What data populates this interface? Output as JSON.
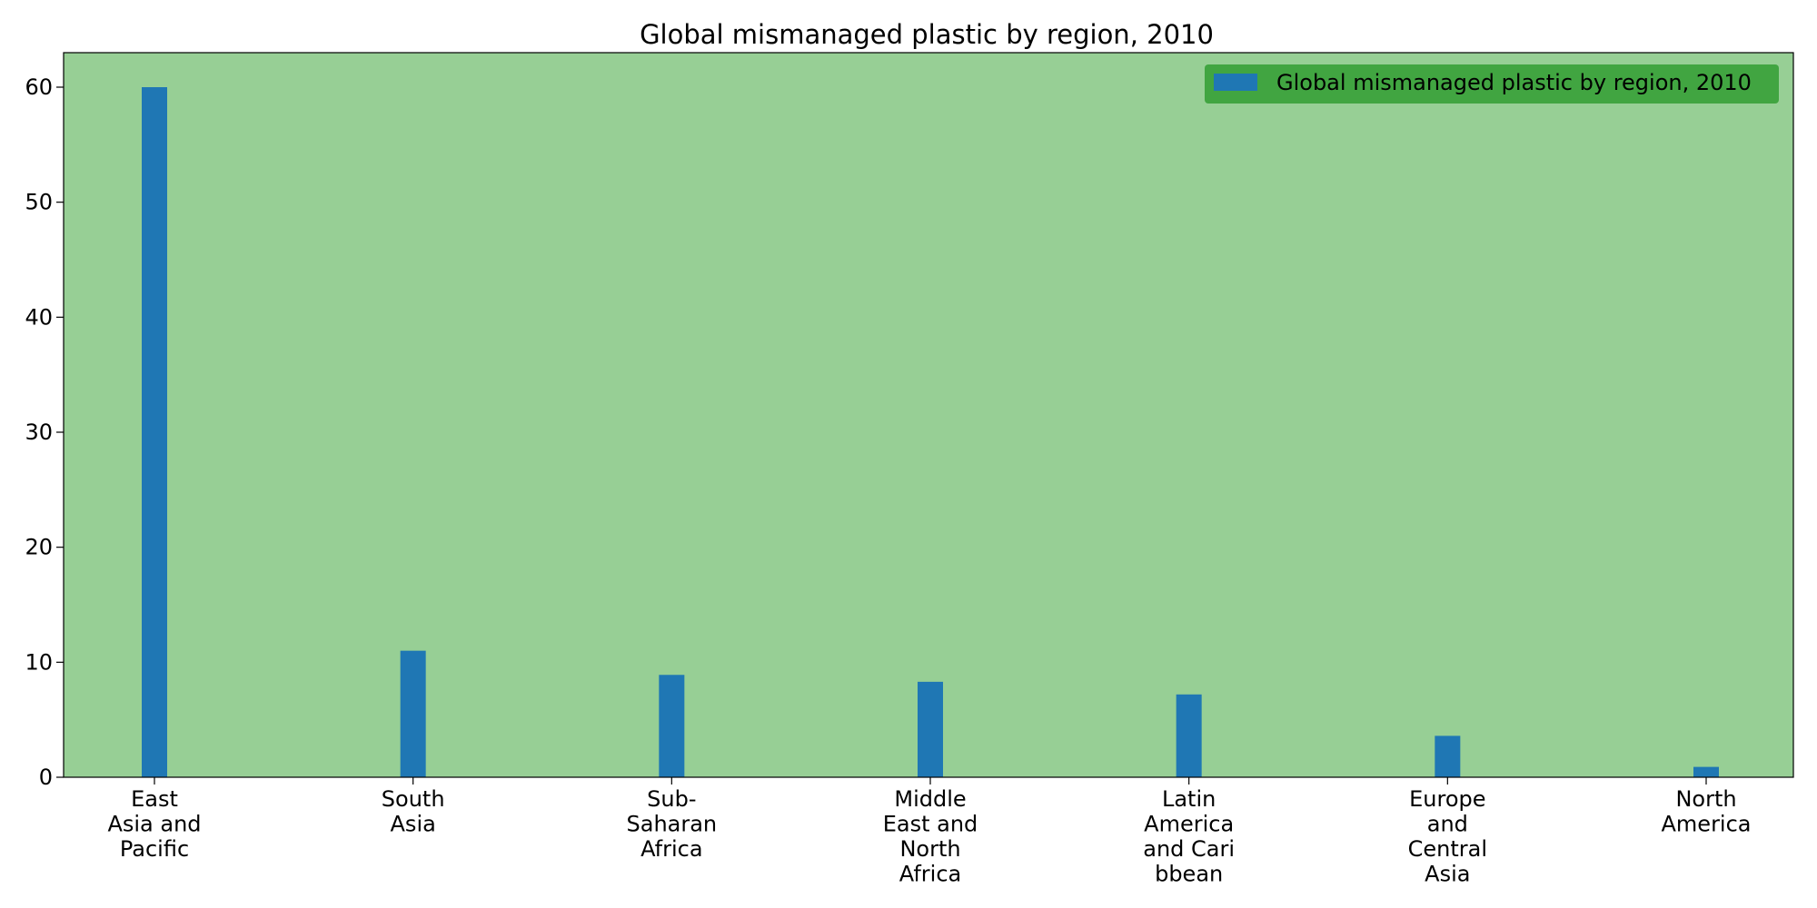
{
  "chart_data": {
    "type": "bar",
    "title": "Global mismanaged plastic by region, 2010",
    "categories": [
      [
        "East",
        "Asia and",
        "Pacific"
      ],
      [
        "South",
        "Asia"
      ],
      [
        "Sub-",
        "Saharan",
        "Africa"
      ],
      [
        "Middle",
        "East and",
        "North",
        "Africa"
      ],
      [
        "Latin",
        "America",
        "and Cari",
        "bbean"
      ],
      [
        "Europe",
        "and",
        "Central",
        "Asia"
      ],
      [
        "North",
        "America"
      ]
    ],
    "series": [
      {
        "name": "Global mismanaged plastic by region, 2010",
        "values": [
          60,
          11,
          8.9,
          8.3,
          7.2,
          3.6,
          0.9
        ],
        "color": "#1f77b4"
      }
    ],
    "xlabel": "",
    "ylabel": "",
    "ylim": [
      0,
      63
    ],
    "yticks": [
      0,
      10,
      20,
      30,
      40,
      50,
      60
    ],
    "grid": false,
    "legend_position": "upper-right",
    "colors": {
      "plot_background": "#97cf95",
      "legend_background": "#41a541",
      "bar": "#1f77b4"
    }
  }
}
